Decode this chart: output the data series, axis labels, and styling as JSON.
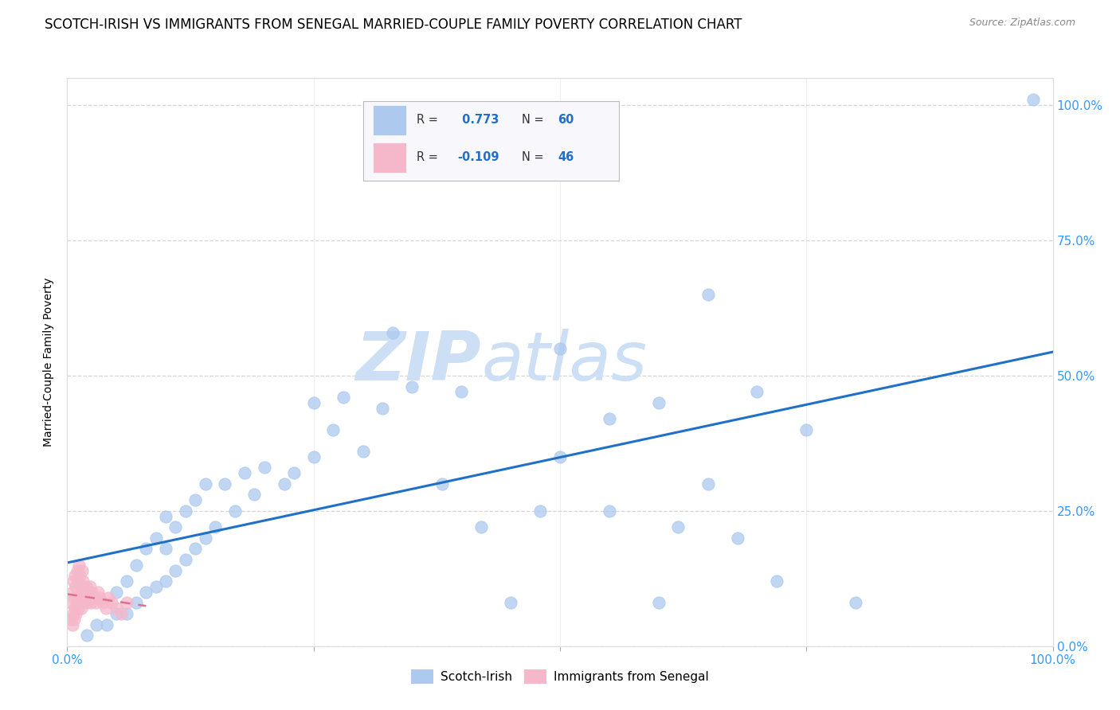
{
  "title": "SCOTCH-IRISH VS IMMIGRANTS FROM SENEGAL MARRIED-COUPLE FAMILY POVERTY CORRELATION CHART",
  "source": "Source: ZipAtlas.com",
  "ylabel": "Married-Couple Family Poverty",
  "xmin": 0.0,
  "xmax": 1.0,
  "ymin": 0.0,
  "ymax": 1.05,
  "yticks": [
    0.0,
    0.25,
    0.5,
    0.75,
    1.0
  ],
  "right_ytick_labels": [
    "0.0%",
    "25.0%",
    "50.0%",
    "75.0%",
    "100.0%"
  ],
  "blue_R": 0.773,
  "blue_N": 60,
  "pink_R": -0.109,
  "pink_N": 46,
  "blue_color": "#adc9ee",
  "blue_line_color": "#2070c8",
  "pink_color": "#f5b8cb",
  "pink_line_color": "#e07090",
  "watermark_zip": "ZIP",
  "watermark_atlas": "atlas",
  "watermark_color": "#ccdff5",
  "legend_label_blue": "Scotch-Irish",
  "legend_label_pink": "Immigrants from Senegal",
  "blue_scatter_x": [
    0.02,
    0.03,
    0.04,
    0.05,
    0.05,
    0.06,
    0.06,
    0.07,
    0.07,
    0.08,
    0.08,
    0.09,
    0.09,
    0.1,
    0.1,
    0.1,
    0.11,
    0.11,
    0.12,
    0.12,
    0.13,
    0.13,
    0.14,
    0.14,
    0.15,
    0.16,
    0.17,
    0.18,
    0.19,
    0.2,
    0.22,
    0.23,
    0.25,
    0.25,
    0.27,
    0.28,
    0.3,
    0.32,
    0.33,
    0.35,
    0.38,
    0.4,
    0.42,
    0.45,
    0.48,
    0.5,
    0.5,
    0.55,
    0.55,
    0.6,
    0.6,
    0.62,
    0.65,
    0.65,
    0.68,
    0.7,
    0.72,
    0.75,
    0.8,
    0.98
  ],
  "blue_scatter_y": [
    0.02,
    0.04,
    0.04,
    0.06,
    0.1,
    0.06,
    0.12,
    0.08,
    0.15,
    0.1,
    0.18,
    0.11,
    0.2,
    0.12,
    0.18,
    0.24,
    0.14,
    0.22,
    0.16,
    0.25,
    0.18,
    0.27,
    0.2,
    0.3,
    0.22,
    0.3,
    0.25,
    0.32,
    0.28,
    0.33,
    0.3,
    0.32,
    0.35,
    0.45,
    0.4,
    0.46,
    0.36,
    0.44,
    0.58,
    0.48,
    0.3,
    0.47,
    0.22,
    0.08,
    0.25,
    0.55,
    0.35,
    0.25,
    0.42,
    0.08,
    0.45,
    0.22,
    0.3,
    0.65,
    0.2,
    0.47,
    0.12,
    0.4,
    0.08,
    1.01
  ],
  "pink_scatter_x": [
    0.003,
    0.004,
    0.005,
    0.005,
    0.006,
    0.006,
    0.007,
    0.007,
    0.008,
    0.008,
    0.009,
    0.009,
    0.01,
    0.01,
    0.011,
    0.011,
    0.012,
    0.012,
    0.013,
    0.013,
    0.014,
    0.014,
    0.015,
    0.015,
    0.016,
    0.016,
    0.017,
    0.018,
    0.019,
    0.02,
    0.021,
    0.022,
    0.023,
    0.024,
    0.025,
    0.027,
    0.029,
    0.031,
    0.033,
    0.036,
    0.039,
    0.042,
    0.045,
    0.05,
    0.055,
    0.06
  ],
  "pink_scatter_y": [
    0.05,
    0.08,
    0.04,
    0.1,
    0.06,
    0.12,
    0.05,
    0.09,
    0.07,
    0.13,
    0.06,
    0.11,
    0.08,
    0.14,
    0.07,
    0.12,
    0.09,
    0.15,
    0.08,
    0.13,
    0.07,
    0.11,
    0.09,
    0.14,
    0.08,
    0.12,
    0.1,
    0.09,
    0.11,
    0.08,
    0.1,
    0.09,
    0.11,
    0.08,
    0.1,
    0.09,
    0.08,
    0.1,
    0.09,
    0.08,
    0.07,
    0.09,
    0.08,
    0.07,
    0.06,
    0.08
  ],
  "grid_color": "#cccccc",
  "bg_color": "#ffffff",
  "title_fontsize": 12,
  "source_fontsize": 9,
  "tick_fontsize": 11,
  "tick_color": "#3399ff",
  "marker_size": 120
}
